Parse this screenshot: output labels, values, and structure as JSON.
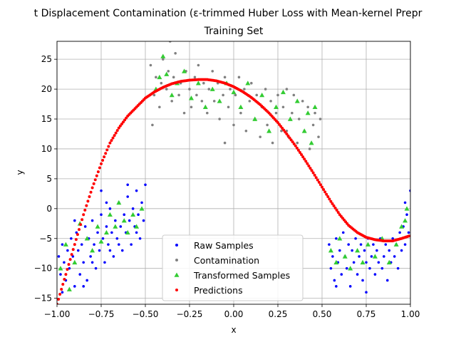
{
  "chart_data": {
    "type": "scatter",
    "title_line1": "t Displacement Contamination (ε-trimmed Huber Loss with Mean-kernel Prepr",
    "title_line2": "Training Set",
    "xlabel": "x",
    "ylabel": "y",
    "xlim": [
      -1.0,
      1.0
    ],
    "ylim": [
      -16,
      28
    ],
    "xticks": [
      -1.0,
      -0.75,
      -0.5,
      -0.25,
      0.0,
      0.25,
      0.5,
      0.75,
      1.0
    ],
    "xtick_labels": [
      "−1.00",
      "−0.75",
      "−0.50",
      "−0.25",
      "0.00",
      "0.25",
      "0.50",
      "0.75",
      "1.00"
    ],
    "yticks": [
      -15,
      -10,
      -5,
      0,
      5,
      10,
      15,
      20,
      25
    ],
    "ytick_labels": [
      "−15",
      "−10",
      "−5",
      "0",
      "5",
      "10",
      "15",
      "20",
      "25"
    ],
    "grid": true,
    "legend_position": "bottom-center",
    "series": [
      {
        "name": "Raw Samples",
        "color": "#0000ff",
        "marker": "dot",
        "points": [
          [
            -0.99,
            -8
          ],
          [
            -0.98,
            -11
          ],
          [
            -0.97,
            -6
          ],
          [
            -0.96,
            -9
          ],
          [
            -0.95,
            -12
          ],
          [
            -0.94,
            -7
          ],
          [
            -0.93,
            -10
          ],
          [
            -0.92,
            -5
          ],
          [
            -0.91,
            -8
          ],
          [
            -0.9,
            -13
          ],
          [
            -0.89,
            -4
          ],
          [
            -0.88,
            -7
          ],
          [
            -0.87,
            -11
          ],
          [
            -0.86,
            -6
          ],
          [
            -0.85,
            -9
          ],
          [
            -0.84,
            -3
          ],
          [
            -0.83,
            -12
          ],
          [
            -0.82,
            -5
          ],
          [
            -0.81,
            -8
          ],
          [
            -0.8,
            -2
          ],
          [
            -0.79,
            -6
          ],
          [
            -0.78,
            -10
          ],
          [
            -0.77,
            -4
          ],
          [
            -0.76,
            -7
          ],
          [
            -0.75,
            -1
          ],
          [
            -0.74,
            -5
          ],
          [
            -0.73,
            -9
          ],
          [
            -0.72,
            -3
          ],
          [
            -0.71,
            -6
          ],
          [
            -0.7,
            0
          ],
          [
            -0.69,
            -4
          ],
          [
            -0.68,
            -8
          ],
          [
            -0.67,
            -2
          ],
          [
            -0.66,
            -5
          ],
          [
            -0.65,
            1
          ],
          [
            -0.64,
            -3
          ],
          [
            -0.63,
            -7
          ],
          [
            -0.62,
            -1
          ],
          [
            -0.61,
            -4
          ],
          [
            -0.6,
            2
          ],
          [
            -0.59,
            -2
          ],
          [
            -0.58,
            -6
          ],
          [
            -0.57,
            0
          ],
          [
            -0.56,
            -3
          ],
          [
            -0.55,
            3
          ],
          [
            -0.54,
            -1
          ],
          [
            -0.53,
            -5
          ],
          [
            -0.52,
            1
          ],
          [
            -0.51,
            -2
          ],
          [
            -0.5,
            4
          ],
          [
            -0.97,
            -14
          ],
          [
            -0.9,
            -2
          ],
          [
            -0.85,
            -13
          ],
          [
            -0.8,
            -9
          ],
          [
            -0.75,
            3
          ],
          [
            -0.7,
            -7
          ],
          [
            -0.65,
            -6
          ],
          [
            -0.6,
            4
          ],
          [
            -0.55,
            -4
          ],
          [
            -0.72,
            1
          ],
          [
            0.54,
            -6
          ],
          [
            0.55,
            -10
          ],
          [
            0.56,
            -8
          ],
          [
            0.57,
            -12
          ],
          [
            0.58,
            -5
          ],
          [
            0.59,
            -9
          ],
          [
            0.6,
            -7
          ],
          [
            0.61,
            -11
          ],
          [
            0.62,
            -4
          ],
          [
            0.63,
            -8
          ],
          [
            0.64,
            -10
          ],
          [
            0.65,
            -6
          ],
          [
            0.66,
            -13
          ],
          [
            0.67,
            -7
          ],
          [
            0.68,
            -9
          ],
          [
            0.69,
            -5
          ],
          [
            0.7,
            -11
          ],
          [
            0.71,
            -8
          ],
          [
            0.72,
            -6
          ],
          [
            0.73,
            -12
          ],
          [
            0.74,
            -7
          ],
          [
            0.75,
            -9
          ],
          [
            0.76,
            -5
          ],
          [
            0.77,
            -10
          ],
          [
            0.78,
            -8
          ],
          [
            0.79,
            -6
          ],
          [
            0.8,
            -11
          ],
          [
            0.81,
            -7
          ],
          [
            0.82,
            -9
          ],
          [
            0.83,
            -5
          ],
          [
            0.84,
            -10
          ],
          [
            0.85,
            -8
          ],
          [
            0.86,
            -6
          ],
          [
            0.87,
            -12
          ],
          [
            0.88,
            -7
          ],
          [
            0.89,
            -9
          ],
          [
            0.9,
            -5
          ],
          [
            0.91,
            -8
          ],
          [
            0.92,
            -6
          ],
          [
            0.93,
            -10
          ],
          [
            0.94,
            -4
          ],
          [
            0.95,
            -7
          ],
          [
            0.96,
            -3
          ],
          [
            0.97,
            -6
          ],
          [
            0.98,
            -1
          ],
          [
            0.99,
            -4
          ],
          [
            1.0,
            3
          ],
          [
            0.97,
            1
          ],
          [
            0.58,
            -13
          ],
          [
            0.75,
            -14
          ]
        ]
      },
      {
        "name": "Contamination",
        "color": "#808080",
        "marker": "dot",
        "points": [
          [
            -0.47,
            24
          ],
          [
            -0.45,
            19
          ],
          [
            -0.44,
            22
          ],
          [
            -0.42,
            17
          ],
          [
            -0.41,
            21
          ],
          [
            -0.4,
            25
          ],
          [
            -0.38,
            20
          ],
          [
            -0.37,
            23
          ],
          [
            -0.35,
            18
          ],
          [
            -0.34,
            22
          ],
          [
            -0.33,
            26
          ],
          [
            -0.31,
            19
          ],
          [
            -0.3,
            21
          ],
          [
            -0.28,
            16
          ],
          [
            -0.27,
            23
          ],
          [
            -0.25,
            20
          ],
          [
            -0.24,
            17
          ],
          [
            -0.22,
            22
          ],
          [
            -0.21,
            19
          ],
          [
            -0.2,
            24
          ],
          [
            -0.18,
            18
          ],
          [
            -0.17,
            21
          ],
          [
            -0.15,
            16
          ],
          [
            -0.14,
            20
          ],
          [
            -0.12,
            23
          ],
          [
            -0.11,
            18
          ],
          [
            -0.09,
            21
          ],
          [
            -0.08,
            15
          ],
          [
            -0.06,
            19
          ],
          [
            -0.05,
            22
          ],
          [
            -0.03,
            17
          ],
          [
            -0.02,
            20
          ],
          [
            0.0,
            14
          ],
          [
            0.01,
            19
          ],
          [
            0.03,
            22
          ],
          [
            0.04,
            16
          ],
          [
            0.06,
            20
          ],
          [
            0.07,
            13
          ],
          [
            0.09,
            18
          ],
          [
            0.1,
            21
          ],
          [
            0.12,
            15
          ],
          [
            0.13,
            19
          ],
          [
            0.15,
            12
          ],
          [
            0.16,
            17
          ],
          [
            0.18,
            20
          ],
          [
            0.19,
            14
          ],
          [
            0.21,
            18
          ],
          [
            0.22,
            11
          ],
          [
            0.24,
            16
          ],
          [
            0.25,
            19
          ],
          [
            0.27,
            13
          ],
          [
            0.28,
            17
          ],
          [
            0.3,
            20
          ],
          [
            0.31,
            12
          ],
          [
            0.33,
            16
          ],
          [
            0.34,
            19
          ],
          [
            0.36,
            11
          ],
          [
            0.37,
            15
          ],
          [
            0.39,
            18
          ],
          [
            0.4,
            13
          ],
          [
            0.42,
            17
          ],
          [
            0.43,
            10
          ],
          [
            0.45,
            14
          ],
          [
            0.46,
            16
          ],
          [
            0.48,
            12
          ],
          [
            0.49,
            15
          ],
          [
            -0.36,
            28
          ],
          [
            -0.05,
            11
          ],
          [
            0.3,
            13
          ],
          [
            -0.46,
            14
          ]
        ]
      },
      {
        "name": "Transformed Samples",
        "color": "#33cc33",
        "marker": "triangle",
        "points": [
          [
            -0.98,
            -10
          ],
          [
            -0.95,
            -6
          ],
          [
            -0.93,
            -13.5
          ],
          [
            -0.9,
            -9
          ],
          [
            -0.87,
            -2.5
          ],
          [
            -0.83,
            -5
          ],
          [
            -0.8,
            -7
          ],
          [
            -0.77,
            -3
          ],
          [
            -0.75,
            -5.5
          ],
          [
            -0.72,
            -4
          ],
          [
            -0.7,
            -1
          ],
          [
            -0.67,
            -3
          ],
          [
            -0.65,
            1
          ],
          [
            -0.62,
            -2
          ],
          [
            -0.6,
            -4
          ],
          [
            -0.57,
            -1
          ],
          [
            -0.55,
            -3
          ],
          [
            -0.52,
            0
          ],
          [
            -0.44,
            20
          ],
          [
            -0.42,
            22
          ],
          [
            -0.4,
            25.5
          ],
          [
            -0.38,
            22.5
          ],
          [
            -0.35,
            19
          ],
          [
            -0.32,
            21
          ],
          [
            -0.28,
            23
          ],
          [
            -0.24,
            18.5
          ],
          [
            -0.2,
            21
          ],
          [
            -0.16,
            17
          ],
          [
            -0.12,
            20
          ],
          [
            -0.08,
            18
          ],
          [
            -0.04,
            21
          ],
          [
            0.0,
            19.5
          ],
          [
            0.04,
            17
          ],
          [
            0.08,
            21
          ],
          [
            0.12,
            15
          ],
          [
            0.16,
            19
          ],
          [
            0.2,
            13
          ],
          [
            0.24,
            17
          ],
          [
            0.28,
            19.5
          ],
          [
            0.32,
            15
          ],
          [
            0.36,
            18
          ],
          [
            0.4,
            13
          ],
          [
            0.42,
            16
          ],
          [
            0.44,
            11
          ],
          [
            0.46,
            17
          ],
          [
            0.55,
            -7
          ],
          [
            0.58,
            -9
          ],
          [
            0.6,
            -5
          ],
          [
            0.63,
            -8
          ],
          [
            0.66,
            -10
          ],
          [
            0.7,
            -7
          ],
          [
            0.73,
            -9
          ],
          [
            0.76,
            -6
          ],
          [
            0.8,
            -8
          ],
          [
            0.84,
            -5
          ],
          [
            0.88,
            -9
          ],
          [
            0.92,
            -6
          ],
          [
            0.95,
            -3
          ],
          [
            0.97,
            -2
          ],
          [
            0.98,
            0
          ]
        ]
      },
      {
        "name": "Predictions",
        "color": "#ff0000",
        "marker": "dot",
        "points": [
          [
            -1.0,
            -16
          ],
          [
            -0.95,
            -11
          ],
          [
            -0.9,
            -6
          ],
          [
            -0.85,
            -1
          ],
          [
            -0.8,
            3.5
          ],
          [
            -0.75,
            7.5
          ],
          [
            -0.7,
            11
          ],
          [
            -0.65,
            13.5
          ],
          [
            -0.6,
            15.5
          ],
          [
            -0.55,
            17
          ],
          [
            -0.5,
            18.5
          ],
          [
            -0.45,
            19.5
          ],
          [
            -0.4,
            20.3
          ],
          [
            -0.35,
            20.9
          ],
          [
            -0.3,
            21.3
          ],
          [
            -0.25,
            21.5
          ],
          [
            -0.2,
            21.6
          ],
          [
            -0.15,
            21.6
          ],
          [
            -0.1,
            21.4
          ],
          [
            -0.05,
            21.0
          ],
          [
            0.0,
            20.4
          ],
          [
            0.05,
            19.6
          ],
          [
            0.1,
            18.6
          ],
          [
            0.15,
            17.4
          ],
          [
            0.2,
            16.0
          ],
          [
            0.25,
            14.4
          ],
          [
            0.3,
            12.5
          ],
          [
            0.35,
            10.5
          ],
          [
            0.4,
            8.3
          ],
          [
            0.45,
            6.0
          ],
          [
            0.5,
            3.6
          ],
          [
            0.55,
            1.2
          ],
          [
            0.6,
            -1.0
          ],
          [
            0.65,
            -2.8
          ],
          [
            0.7,
            -4.0
          ],
          [
            0.75,
            -4.8
          ],
          [
            0.8,
            -5.2
          ],
          [
            0.85,
            -5.4
          ],
          [
            0.9,
            -5.4
          ],
          [
            0.95,
            -5.0
          ],
          [
            1.0,
            -4.5
          ]
        ]
      }
    ]
  }
}
